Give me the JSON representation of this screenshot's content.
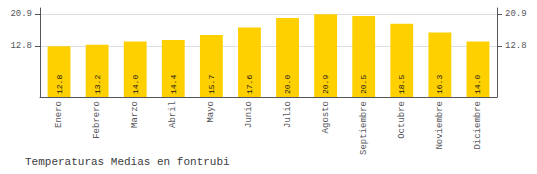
{
  "chart_data": {
    "type": "bar",
    "title": "Temperaturas Medias en fontrubi",
    "categories": [
      "Enero",
      "Febrero",
      "Marzo",
      "Abril",
      "Mayo",
      "Junio",
      "Julio",
      "Agosto",
      "Septiembre",
      "Octubre",
      "Noviembre",
      "Diciembre"
    ],
    "values": [
      12.8,
      13.2,
      14.0,
      14.4,
      15.7,
      17.6,
      20.0,
      20.9,
      20.5,
      18.5,
      16.3,
      14.0
    ],
    "value_labels": [
      "12.8",
      "13.2",
      "14.0",
      "14.4",
      "15.7",
      "17.6",
      "20.0",
      "20.9",
      "20.5",
      "18.5",
      "16.3",
      "14.0"
    ],
    "data_labels": true,
    "color": "#FFD000",
    "ylim": [
      0,
      22.5
    ],
    "yticks": [
      12.8,
      20.9
    ],
    "grid": true
  }
}
